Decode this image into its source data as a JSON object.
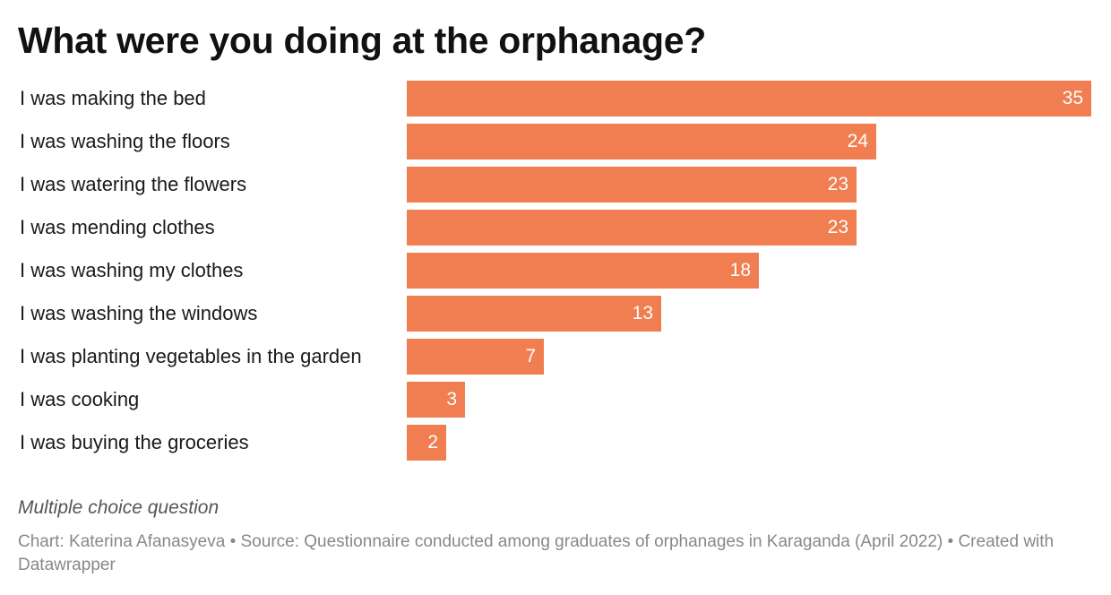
{
  "chart_data": {
    "type": "bar",
    "orientation": "horizontal",
    "title": "What were you doing at the orphanage?",
    "categories": [
      "I was making the bed",
      "I was washing the floors",
      "I was watering the flowers",
      "I was mending clothes",
      "I was washing my clothes",
      "I was washing the windows",
      "I was planting vegetables in the garden",
      "I was cooking",
      "I was buying the groceries"
    ],
    "values": [
      35,
      24,
      23,
      23,
      18,
      13,
      7,
      3,
      2
    ],
    "xlim": [
      0,
      35
    ],
    "bar_color": "#f07e50",
    "xlabel": "",
    "ylabel": "",
    "grid": false
  },
  "note": "Multiple choice question",
  "credits": "Chart: Katerina Afanasyeva • Source: Questionnaire conducted among graduates of orphanages in Karaganda (April 2022) • Created with Datawrapper"
}
